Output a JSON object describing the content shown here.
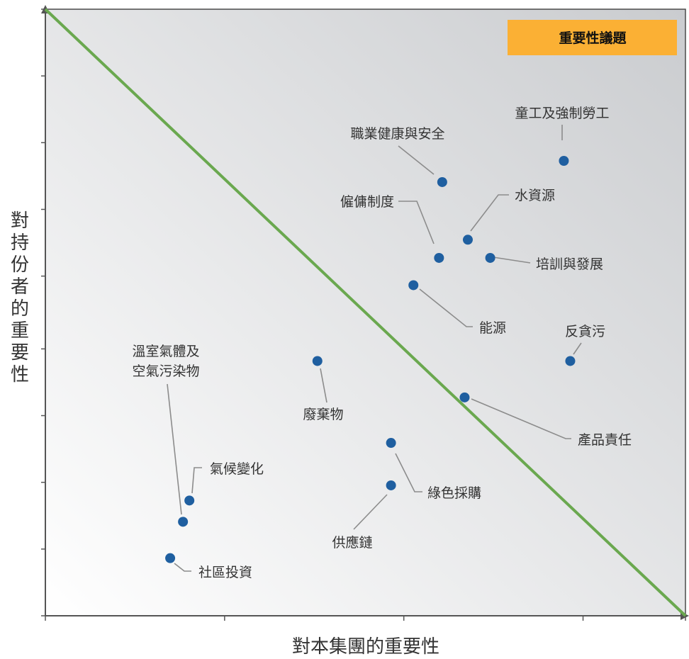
{
  "chart_data": {
    "type": "scatter",
    "title": "",
    "xlabel": "對本集團的重要性",
    "ylabel": "對持份者的重要性",
    "xlim": [
      0,
      100
    ],
    "ylim": [
      0,
      100
    ],
    "grid": false,
    "x_ticks": [
      0,
      28,
      56,
      84,
      100
    ],
    "y_ticks": [
      0,
      11,
      22,
      33,
      44,
      56,
      67,
      78,
      89,
      100
    ],
    "legend": {
      "label": "重要性議題",
      "position": "top-right",
      "color": "#FBB034"
    },
    "diagonal": {
      "from": [
        0,
        100
      ],
      "to": [
        100,
        0
      ],
      "color": "#6AA84F"
    },
    "marker_color": "#1F5FA0",
    "leader_color": "#8C8C8C",
    "points": [
      {
        "name": "童工及強制勞工",
        "x": 81,
        "y": 75
      },
      {
        "name": "職業健康與安全",
        "x": 62,
        "y": 71.5
      },
      {
        "name": "水資源",
        "x": 66,
        "y": 62
      },
      {
        "name": "僱傭制度",
        "x": 61.5,
        "y": 59
      },
      {
        "name": "培訓與發展",
        "x": 69.5,
        "y": 59
      },
      {
        "name": "能源",
        "x": 57.5,
        "y": 54.5
      },
      {
        "name": "反貪污",
        "x": 82,
        "y": 42
      },
      {
        "name": "廢棄物",
        "x": 42.5,
        "y": 42
      },
      {
        "name": "產品責任",
        "x": 65.5,
        "y": 36
      },
      {
        "name": "綠色採購",
        "x": 54,
        "y": 28.5
      },
      {
        "name": "供應鏈",
        "x": 54,
        "y": 21.5
      },
      {
        "name": "溫室氣體及空氣污染物",
        "lines": [
          "溫室氣體及",
          "空氣污染物"
        ],
        "x": 21.5,
        "y": 15.5
      },
      {
        "name": "氣候變化",
        "x": 22.5,
        "y": 19
      },
      {
        "name": "社區投資",
        "x": 19.5,
        "y": 9.5
      }
    ]
  }
}
